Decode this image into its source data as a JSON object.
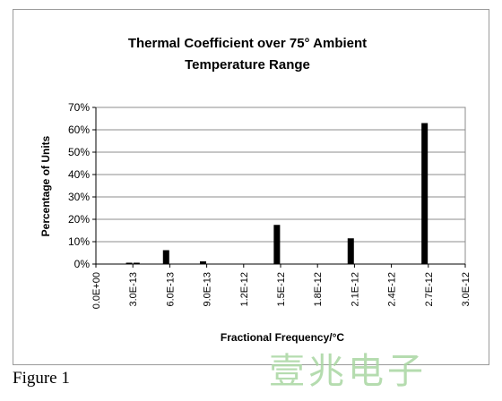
{
  "chart_data": {
    "type": "bar",
    "title_lines": [
      "Thermal Coefficient over 75° Ambient",
      "Temperature Range"
    ],
    "xlabel": "Fractional Frequency/°C",
    "ylabel": "Percentage of Units",
    "ylim": [
      0,
      70
    ],
    "yticks": [
      "0%",
      "10%",
      "20%",
      "30%",
      "40%",
      "50%",
      "60%",
      "70%"
    ],
    "ytick_values": [
      0,
      10,
      20,
      30,
      40,
      50,
      60,
      70
    ],
    "xticks": [
      "0.0E+00",
      "3.0E-13",
      "6.0E-13",
      "9.0E-13",
      "1.2E-12",
      "1.5E-12",
      "1.8E-12",
      "2.1E-12",
      "2.4E-12",
      "2.7E-12",
      "3.0E-12"
    ],
    "xlim": [
      0,
      3e-12
    ],
    "grid": true,
    "legend": "none",
    "bar_color": "#000000",
    "points": [
      {
        "x": 2.7e-13,
        "y": 0.6
      },
      {
        "x": 3.3e-13,
        "y": 0.6
      },
      {
        "x": 5.7e-13,
        "y": 6.2
      },
      {
        "x": 8.7e-13,
        "y": 1.2
      },
      {
        "x": 1.47e-12,
        "y": 17.5
      },
      {
        "x": 2.07e-12,
        "y": 11.5
      },
      {
        "x": 2.67e-12,
        "y": 63
      }
    ]
  },
  "caption": "Figure 1",
  "watermark": "壹兆电子"
}
